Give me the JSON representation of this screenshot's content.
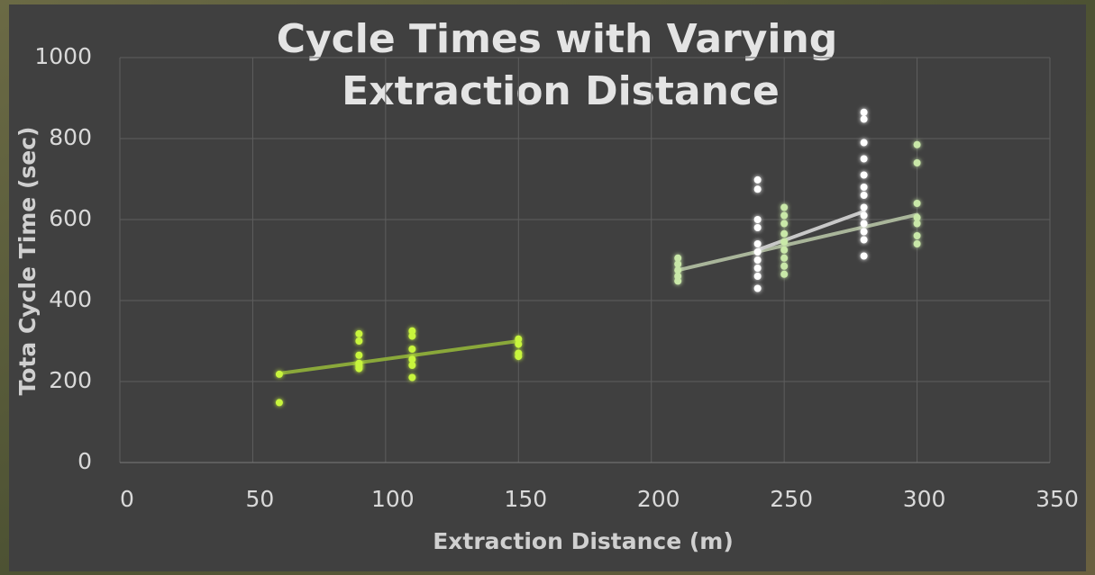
{
  "chart_data": {
    "type": "scatter",
    "title": [
      "Cycle Times with Varying",
      "Extraction Distance"
    ],
    "x_label": "Extraction Distance (m)",
    "y_label": "Tota Cycle Time (sec)",
    "xlim": [
      0,
      350
    ],
    "xticks": [
      0,
      50,
      100,
      150,
      200,
      250,
      300,
      350
    ],
    "ylim": [
      0,
      1000
    ],
    "yticks": [
      0,
      200,
      400,
      600,
      800,
      1000
    ],
    "grid": true,
    "series": [
      {
        "color": "#c8f53c",
        "x": [
          60,
          60,
          90,
          90,
          90,
          90,
          90,
          90,
          110,
          110,
          110,
          110,
          110,
          110,
          150,
          150,
          150,
          150
        ],
        "values": [
          218,
          148,
          318,
          300,
          265,
          245,
          238,
          232,
          325,
          312,
          280,
          255,
          240,
          210,
          305,
          292,
          270,
          262
        ]
      },
      {
        "color": "#c9e8a8",
        "x": [
          210,
          210,
          210,
          210,
          210,
          250,
          250,
          250,
          250,
          250,
          250,
          250,
          250,
          250,
          300,
          300,
          300,
          300,
          300,
          300,
          300
        ],
        "values": [
          505,
          490,
          475,
          460,
          448,
          630,
          610,
          590,
          565,
          545,
          525,
          505,
          485,
          465,
          785,
          740,
          640,
          605,
          590,
          560,
          540
        ]
      },
      {
        "color": "#ffffff",
        "x": [
          240,
          240,
          240,
          240,
          240,
          240,
          240,
          240,
          240,
          240,
          280,
          280,
          280,
          280,
          280,
          280,
          280,
          280,
          280,
          280,
          280,
          280,
          280
        ],
        "values": [
          698,
          675,
          600,
          580,
          540,
          520,
          500,
          480,
          460,
          430,
          865,
          848,
          790,
          750,
          710,
          680,
          660,
          630,
          610,
          590,
          570,
          550,
          510
        ]
      }
    ],
    "trendlines": [
      {
        "color": "#8aa83a",
        "x": [
          60,
          150
        ],
        "values": [
          220,
          300
        ]
      },
      {
        "color": "#a9b59a",
        "x": [
          210,
          300
        ],
        "values": [
          475,
          612
        ]
      },
      {
        "color": "#c8c8c8",
        "x": [
          240,
          280
        ],
        "values": [
          525,
          620
        ]
      }
    ]
  }
}
